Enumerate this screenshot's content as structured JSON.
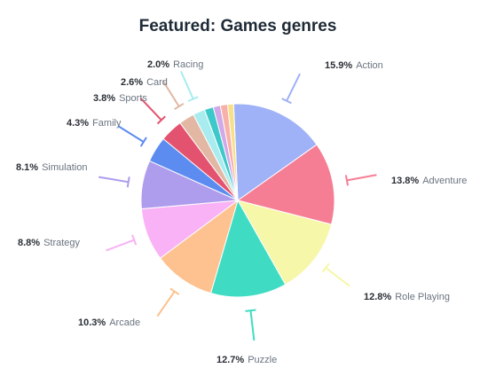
{
  "chart_data": {
    "type": "pie",
    "title": "Featured: Games genres",
    "unit": "%",
    "slices": [
      {
        "label": "Action",
        "value": 15.9,
        "text": "15.9%",
        "color": "#9fb1f7"
      },
      {
        "label": "Adventure",
        "value": 13.8,
        "text": "13.8%",
        "color": "#f57e95"
      },
      {
        "label": "Role Playing",
        "value": 12.8,
        "text": "12.8%",
        "color": "#f6f7a8"
      },
      {
        "label": "Puzzle",
        "value": 12.7,
        "text": "12.7%",
        "color": "#3fdcc3"
      },
      {
        "label": "Arcade",
        "value": 10.3,
        "text": "10.3%",
        "color": "#fdc28f"
      },
      {
        "label": "Strategy",
        "value": 8.8,
        "text": "8.8%",
        "color": "#f9b2f5"
      },
      {
        "label": "Simulation",
        "value": 8.1,
        "text": "8.1%",
        "color": "#ae9cec"
      },
      {
        "label": "Family",
        "value": 4.3,
        "text": "4.3%",
        "color": "#5d8cf0"
      },
      {
        "label": "Sports",
        "value": 3.8,
        "text": "3.8%",
        "color": "#e3536f"
      },
      {
        "label": "Card",
        "value": 2.6,
        "text": "2.6%",
        "color": "#e2b7a3"
      },
      {
        "label": "Racing",
        "value": 2.0,
        "text": "2.0%",
        "color": "#a9ecef"
      },
      {
        "label": "",
        "value": 1.5,
        "text": "",
        "color": "#3dc9c9"
      },
      {
        "label": "",
        "value": 1.2,
        "text": "",
        "color": "#d1a8e8"
      },
      {
        "label": "",
        "value": 1.2,
        "text": "",
        "color": "#f7b1a8"
      },
      {
        "label": "",
        "value": 1.0,
        "text": "",
        "color": "#f6e08c"
      }
    ]
  }
}
